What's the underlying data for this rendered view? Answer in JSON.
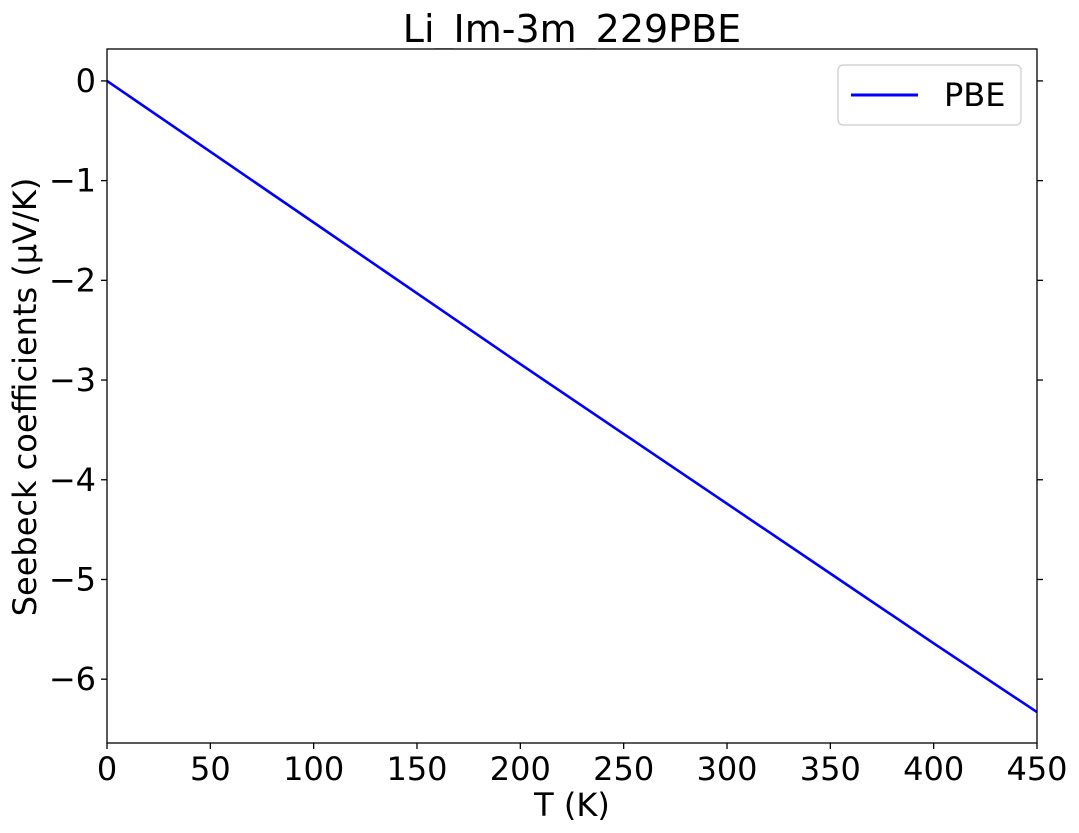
{
  "chart_data": {
    "type": "line",
    "title": "Li_Im-3m_229PBE",
    "xlabel": "T (K)",
    "ylabel": "Seebeck coefficients (µV/K)",
    "xlim": [
      0,
      450
    ],
    "ylim": [
      -6.64,
      0.32
    ],
    "xticks": [
      0,
      50,
      100,
      150,
      200,
      250,
      300,
      350,
      400,
      450
    ],
    "xtick_labels": [
      "0",
      "50",
      "100",
      "150",
      "200",
      "250",
      "300",
      "350",
      "400",
      "450"
    ],
    "yticks": [
      0,
      -1,
      -2,
      -3,
      -4,
      -5,
      -6
    ],
    "ytick_labels": [
      "0",
      "−1",
      "−2",
      "−3",
      "−4",
      "−5",
      "−6"
    ],
    "grid": false,
    "legend_position": "upper right",
    "series": [
      {
        "name": "PBE",
        "color": "#0000ff",
        "x": [
          0,
          50,
          100,
          150,
          200,
          250,
          300,
          350,
          400,
          450
        ],
        "y": [
          0,
          -0.71,
          -1.42,
          -2.13,
          -2.84,
          -3.54,
          -4.24,
          -4.94,
          -5.64,
          -6.33
        ]
      }
    ]
  }
}
